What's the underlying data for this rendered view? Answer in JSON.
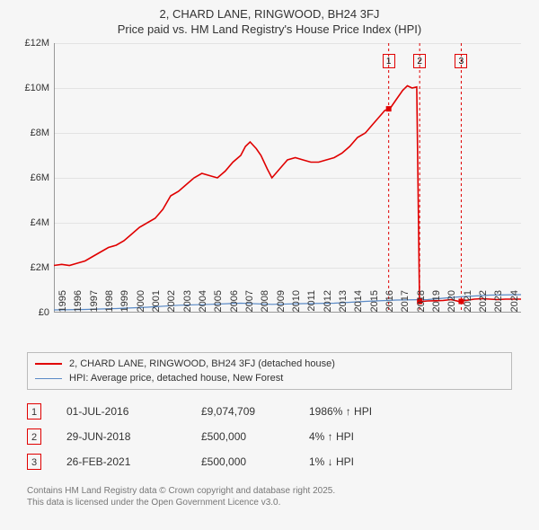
{
  "title": {
    "line1": "2, CHARD LANE, RINGWOOD, BH24 3FJ",
    "line2": "Price paid vs. HM Land Registry's House Price Index (HPI)"
  },
  "chart": {
    "type": "line",
    "background_color": "#f6f6f6",
    "grid_color": "rgba(120,120,120,0.15)",
    "xlim": [
      1995,
      2025
    ],
    "ylim": [
      0,
      12
    ],
    "yticks": [
      0,
      2,
      4,
      6,
      8,
      10,
      12
    ],
    "ytick_labels": [
      "£0",
      "£2M",
      "£4M",
      "£6M",
      "£8M",
      "£10M",
      "£12M"
    ],
    "xticks": [
      1995,
      1996,
      1997,
      1998,
      1999,
      2000,
      2001,
      2002,
      2003,
      2004,
      2005,
      2006,
      2007,
      2008,
      2009,
      2010,
      2011,
      2012,
      2013,
      2014,
      2015,
      2016,
      2017,
      2018,
      2019,
      2020,
      2021,
      2022,
      2023,
      2024
    ],
    "series": [
      {
        "name": "2, CHARD LANE, RINGWOOD, BH24 3FJ (detached house)",
        "color": "#e00000",
        "width": 1.6,
        "points": [
          [
            1995,
            2.1
          ],
          [
            1995.5,
            2.15
          ],
          [
            1996,
            2.1
          ],
          [
            1996.5,
            2.2
          ],
          [
            1997,
            2.3
          ],
          [
            1997.5,
            2.5
          ],
          [
            1998,
            2.7
          ],
          [
            1998.5,
            2.9
          ],
          [
            1999,
            3.0
          ],
          [
            1999.5,
            3.2
          ],
          [
            2000,
            3.5
          ],
          [
            2000.5,
            3.8
          ],
          [
            2001,
            4.0
          ],
          [
            2001.5,
            4.2
          ],
          [
            2002,
            4.6
          ],
          [
            2002.5,
            5.2
          ],
          [
            2003,
            5.4
          ],
          [
            2003.5,
            5.7
          ],
          [
            2004,
            6.0
          ],
          [
            2004.5,
            6.2
          ],
          [
            2005,
            6.1
          ],
          [
            2005.5,
            6.0
          ],
          [
            2006,
            6.3
          ],
          [
            2006.5,
            6.7
          ],
          [
            2007,
            7.0
          ],
          [
            2007.3,
            7.4
          ],
          [
            2007.6,
            7.6
          ],
          [
            2008,
            7.3
          ],
          [
            2008.3,
            7.0
          ],
          [
            2008.7,
            6.4
          ],
          [
            2009,
            6.0
          ],
          [
            2009.5,
            6.4
          ],
          [
            2010,
            6.8
          ],
          [
            2010.5,
            6.9
          ],
          [
            2011,
            6.8
          ],
          [
            2011.5,
            6.7
          ],
          [
            2012,
            6.7
          ],
          [
            2012.5,
            6.8
          ],
          [
            2013,
            6.9
          ],
          [
            2013.5,
            7.1
          ],
          [
            2014,
            7.4
          ],
          [
            2014.5,
            7.8
          ],
          [
            2015,
            8.0
          ],
          [
            2015.5,
            8.4
          ],
          [
            2016,
            8.8
          ],
          [
            2016.25,
            9.0
          ],
          [
            2016.5,
            9.074
          ],
          [
            2016.6,
            9.1
          ],
          [
            2017,
            9.5
          ],
          [
            2017.4,
            9.9
          ],
          [
            2017.7,
            10.1
          ],
          [
            2018,
            10.0
          ],
          [
            2018.3,
            10.05
          ],
          [
            2018.48,
            0.5
          ],
          [
            2018.7,
            0.5
          ],
          [
            2019,
            0.52
          ],
          [
            2019.5,
            0.53
          ],
          [
            2020,
            0.54
          ],
          [
            2020.5,
            0.58
          ],
          [
            2021,
            0.5
          ],
          [
            2021.5,
            0.55
          ],
          [
            2022,
            0.6
          ],
          [
            2022.5,
            0.62
          ],
          [
            2023,
            0.6
          ],
          [
            2023.5,
            0.58
          ],
          [
            2024,
            0.6
          ],
          [
            2024.5,
            0.6
          ],
          [
            2025,
            0.6
          ]
        ]
      },
      {
        "name": "HPI: Average price, detached house, New Forest",
        "color": "#5a8ac6",
        "width": 1.2,
        "points": [
          [
            1995,
            0.12
          ],
          [
            1997,
            0.14
          ],
          [
            1999,
            0.18
          ],
          [
            2001,
            0.24
          ],
          [
            2003,
            0.33
          ],
          [
            2005,
            0.37
          ],
          [
            2007,
            0.42
          ],
          [
            2009,
            0.37
          ],
          [
            2011,
            0.4
          ],
          [
            2013,
            0.42
          ],
          [
            2015,
            0.5
          ],
          [
            2017,
            0.56
          ],
          [
            2019,
            0.58
          ],
          [
            2021,
            0.7
          ],
          [
            2023,
            0.78
          ],
          [
            2025,
            0.8
          ]
        ]
      }
    ],
    "markers": [
      {
        "label": "1",
        "x": 2016.5,
        "y": 9.074
      },
      {
        "label": "2",
        "x": 2018.49,
        "y": 0.5
      },
      {
        "label": "3",
        "x": 2021.16,
        "y": 0.5
      }
    ],
    "vlines": [
      {
        "x": 2016.5,
        "color": "#e00000",
        "dash": "3,3"
      },
      {
        "x": 2018.49,
        "color": "#e00000",
        "dash": "3,3"
      },
      {
        "x": 2021.16,
        "color": "#e00000",
        "dash": "3,3"
      }
    ]
  },
  "legend": {
    "items": [
      "2, CHARD LANE, RINGWOOD, BH24 3FJ (detached house)",
      "HPI: Average price, detached house, New Forest"
    ]
  },
  "transactions": [
    {
      "idx": "1",
      "date": "01-JUL-2016",
      "price": "£9,074,709",
      "change": "1986% ↑ HPI"
    },
    {
      "idx": "2",
      "date": "29-JUN-2018",
      "price": "£500,000",
      "change": "4% ↑ HPI"
    },
    {
      "idx": "3",
      "date": "26-FEB-2021",
      "price": "£500,000",
      "change": "1% ↓ HPI"
    }
  ],
  "footer": {
    "line1": "Contains HM Land Registry data © Crown copyright and database right 2025.",
    "line2": "This data is licensed under the Open Government Licence v3.0."
  }
}
